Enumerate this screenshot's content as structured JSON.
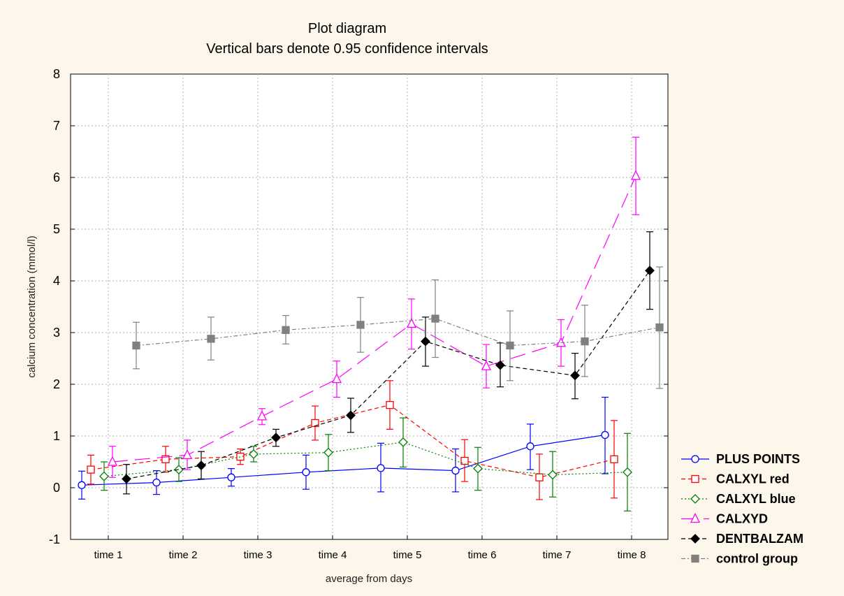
{
  "chart_data": {
    "type": "line",
    "title": "Plot diagram",
    "subtitle": "Vertical bars denote 0.95 confidence intervals",
    "xlabel": "average from days",
    "ylabel": "calcium concentration (mmol/l)",
    "ylim": [
      -1,
      8
    ],
    "yticks": [
      "-1",
      "0",
      "1",
      "2",
      "3",
      "4",
      "5",
      "6",
      "7",
      "8"
    ],
    "categories": [
      "time 1",
      "time 2",
      "time 3",
      "time 4",
      "time 5",
      "time 6",
      "time 7",
      "time 8"
    ],
    "grid": true,
    "legend_position": "right",
    "error_bars": "0.95 confidence intervals",
    "series": [
      {
        "name": "PLUS POINTS",
        "color": "#0000ff",
        "marker": "circle-open",
        "line": "solid",
        "values": [
          0.05,
          0.1,
          0.2,
          0.3,
          0.38,
          0.33,
          0.8,
          1.02
        ],
        "lower": [
          -0.22,
          -0.13,
          0.03,
          -0.03,
          -0.08,
          -0.08,
          0.35,
          0.27
        ],
        "upper": [
          0.32,
          0.33,
          0.37,
          0.63,
          0.86,
          0.75,
          1.23,
          1.75
        ]
      },
      {
        "name": "CALXYL red",
        "color": "#ff0000",
        "marker": "square-open",
        "line": "dashed",
        "values": [
          0.35,
          0.55,
          0.6,
          1.25,
          1.6,
          0.52,
          0.2,
          0.55
        ],
        "lower": [
          0.07,
          0.3,
          0.45,
          0.92,
          1.13,
          0.12,
          -0.23,
          -0.2
        ],
        "upper": [
          0.63,
          0.8,
          0.75,
          1.58,
          2.07,
          0.93,
          0.65,
          1.3
        ]
      },
      {
        "name": "CALXYL blue",
        "color": "#008000",
        "marker": "diamond-open",
        "line": "dotted",
        "values": [
          0.22,
          0.35,
          0.65,
          0.68,
          0.88,
          0.37,
          0.25,
          0.3
        ],
        "lower": [
          -0.05,
          0.12,
          0.5,
          0.33,
          0.4,
          -0.05,
          -0.18,
          -0.45
        ],
        "upper": [
          0.5,
          0.58,
          0.8,
          1.03,
          1.35,
          0.78,
          0.7,
          1.05
        ]
      },
      {
        "name": "CALXYD",
        "color": "#ff00ff",
        "marker": "triangle-open",
        "line": "longdash",
        "values": [
          0.5,
          0.63,
          1.38,
          2.1,
          3.17,
          2.35,
          2.8,
          6.03
        ],
        "lower": [
          0.2,
          0.35,
          1.22,
          1.75,
          2.68,
          1.93,
          2.35,
          5.28
        ],
        "upper": [
          0.8,
          0.92,
          1.53,
          2.45,
          3.65,
          2.77,
          3.25,
          6.78
        ]
      },
      {
        "name": "DENTBALZAM",
        "color": "#000000",
        "marker": "diamond-filled",
        "line": "dashed",
        "values": [
          0.17,
          0.43,
          0.97,
          1.4,
          2.83,
          2.37,
          2.17,
          4.2
        ],
        "lower": [
          -0.12,
          0.17,
          0.8,
          1.07,
          2.35,
          1.95,
          1.72,
          3.45
        ],
        "upper": [
          0.45,
          0.7,
          1.13,
          1.73,
          3.3,
          2.8,
          2.6,
          4.95
        ]
      },
      {
        "name": "control group",
        "color": "#808080",
        "marker": "square-filled",
        "line": "dashdot",
        "values": [
          2.75,
          2.88,
          3.05,
          3.15,
          3.27,
          2.75,
          2.83,
          3.1
        ],
        "lower": [
          2.3,
          2.47,
          2.78,
          2.62,
          2.52,
          2.07,
          2.15,
          1.92
        ],
        "upper": [
          3.2,
          3.3,
          3.33,
          3.68,
          4.02,
          3.42,
          3.53,
          4.27
        ]
      }
    ]
  }
}
